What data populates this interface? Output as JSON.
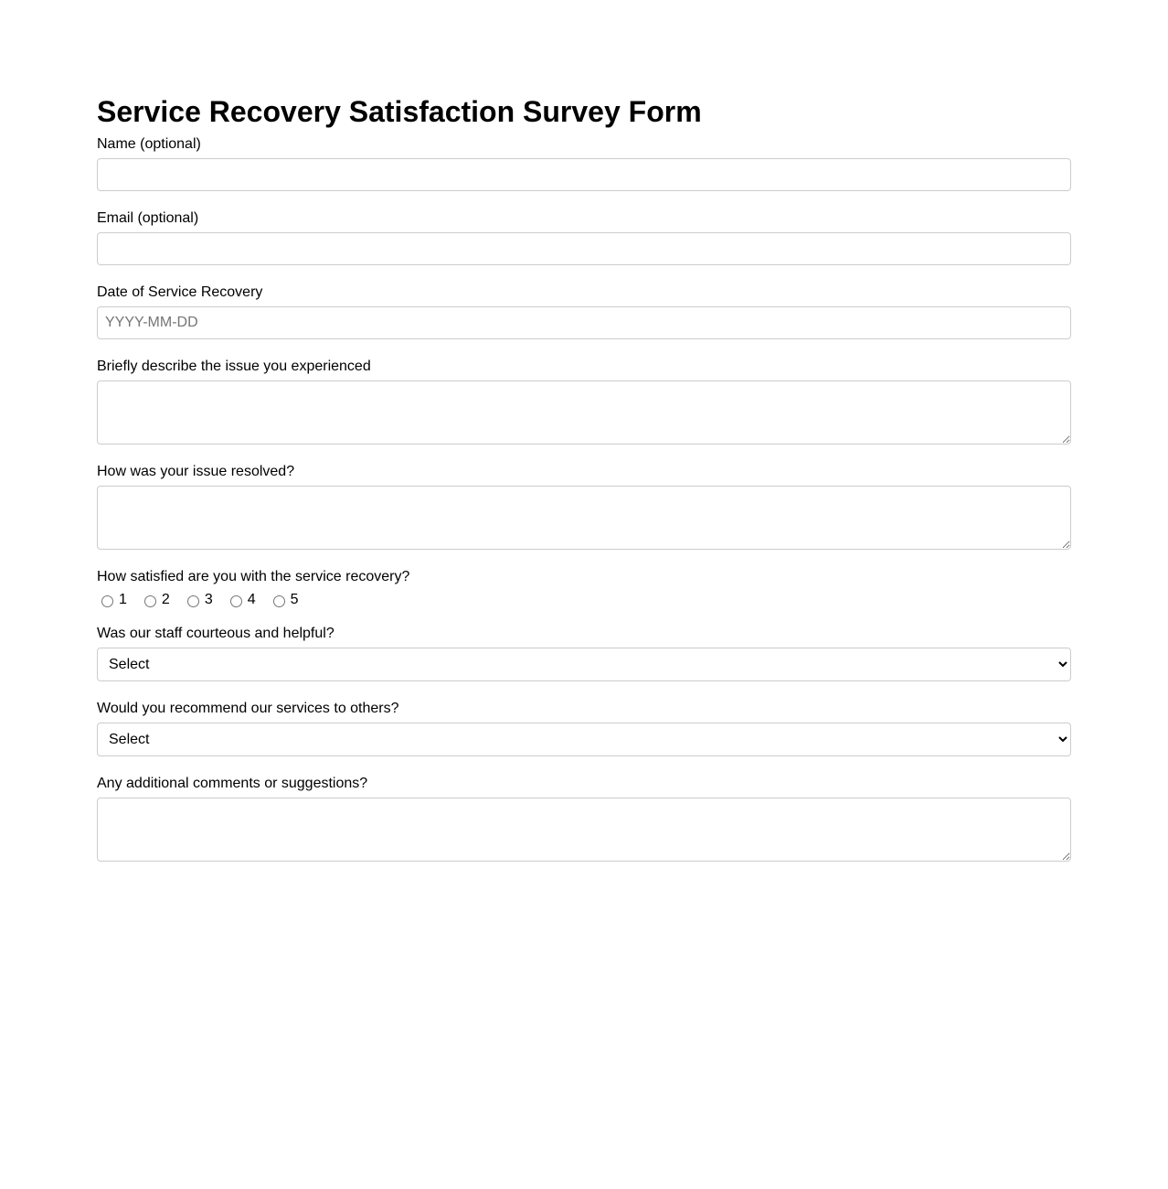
{
  "title": "Service Recovery Satisfaction Survey Form",
  "fields": {
    "name": {
      "label": "Name (optional)",
      "value": ""
    },
    "email": {
      "label": "Email (optional)",
      "value": ""
    },
    "date": {
      "label": "Date of Service Recovery",
      "placeholder": "YYYY-MM-DD",
      "value": ""
    },
    "issue": {
      "label": "Briefly describe the issue you experienced",
      "value": ""
    },
    "resolution": {
      "label": "How was your issue resolved?",
      "value": ""
    },
    "satisfaction": {
      "label": "How satisfied are you with the service recovery?",
      "options": [
        "1",
        "2",
        "3",
        "4",
        "5"
      ],
      "selected": null
    },
    "courteous": {
      "label": "Was our staff courteous and helpful?",
      "selected": "Select"
    },
    "recommend": {
      "label": "Would you recommend our services to others?",
      "selected": "Select"
    },
    "comments": {
      "label": "Any additional comments or suggestions?",
      "value": ""
    }
  }
}
